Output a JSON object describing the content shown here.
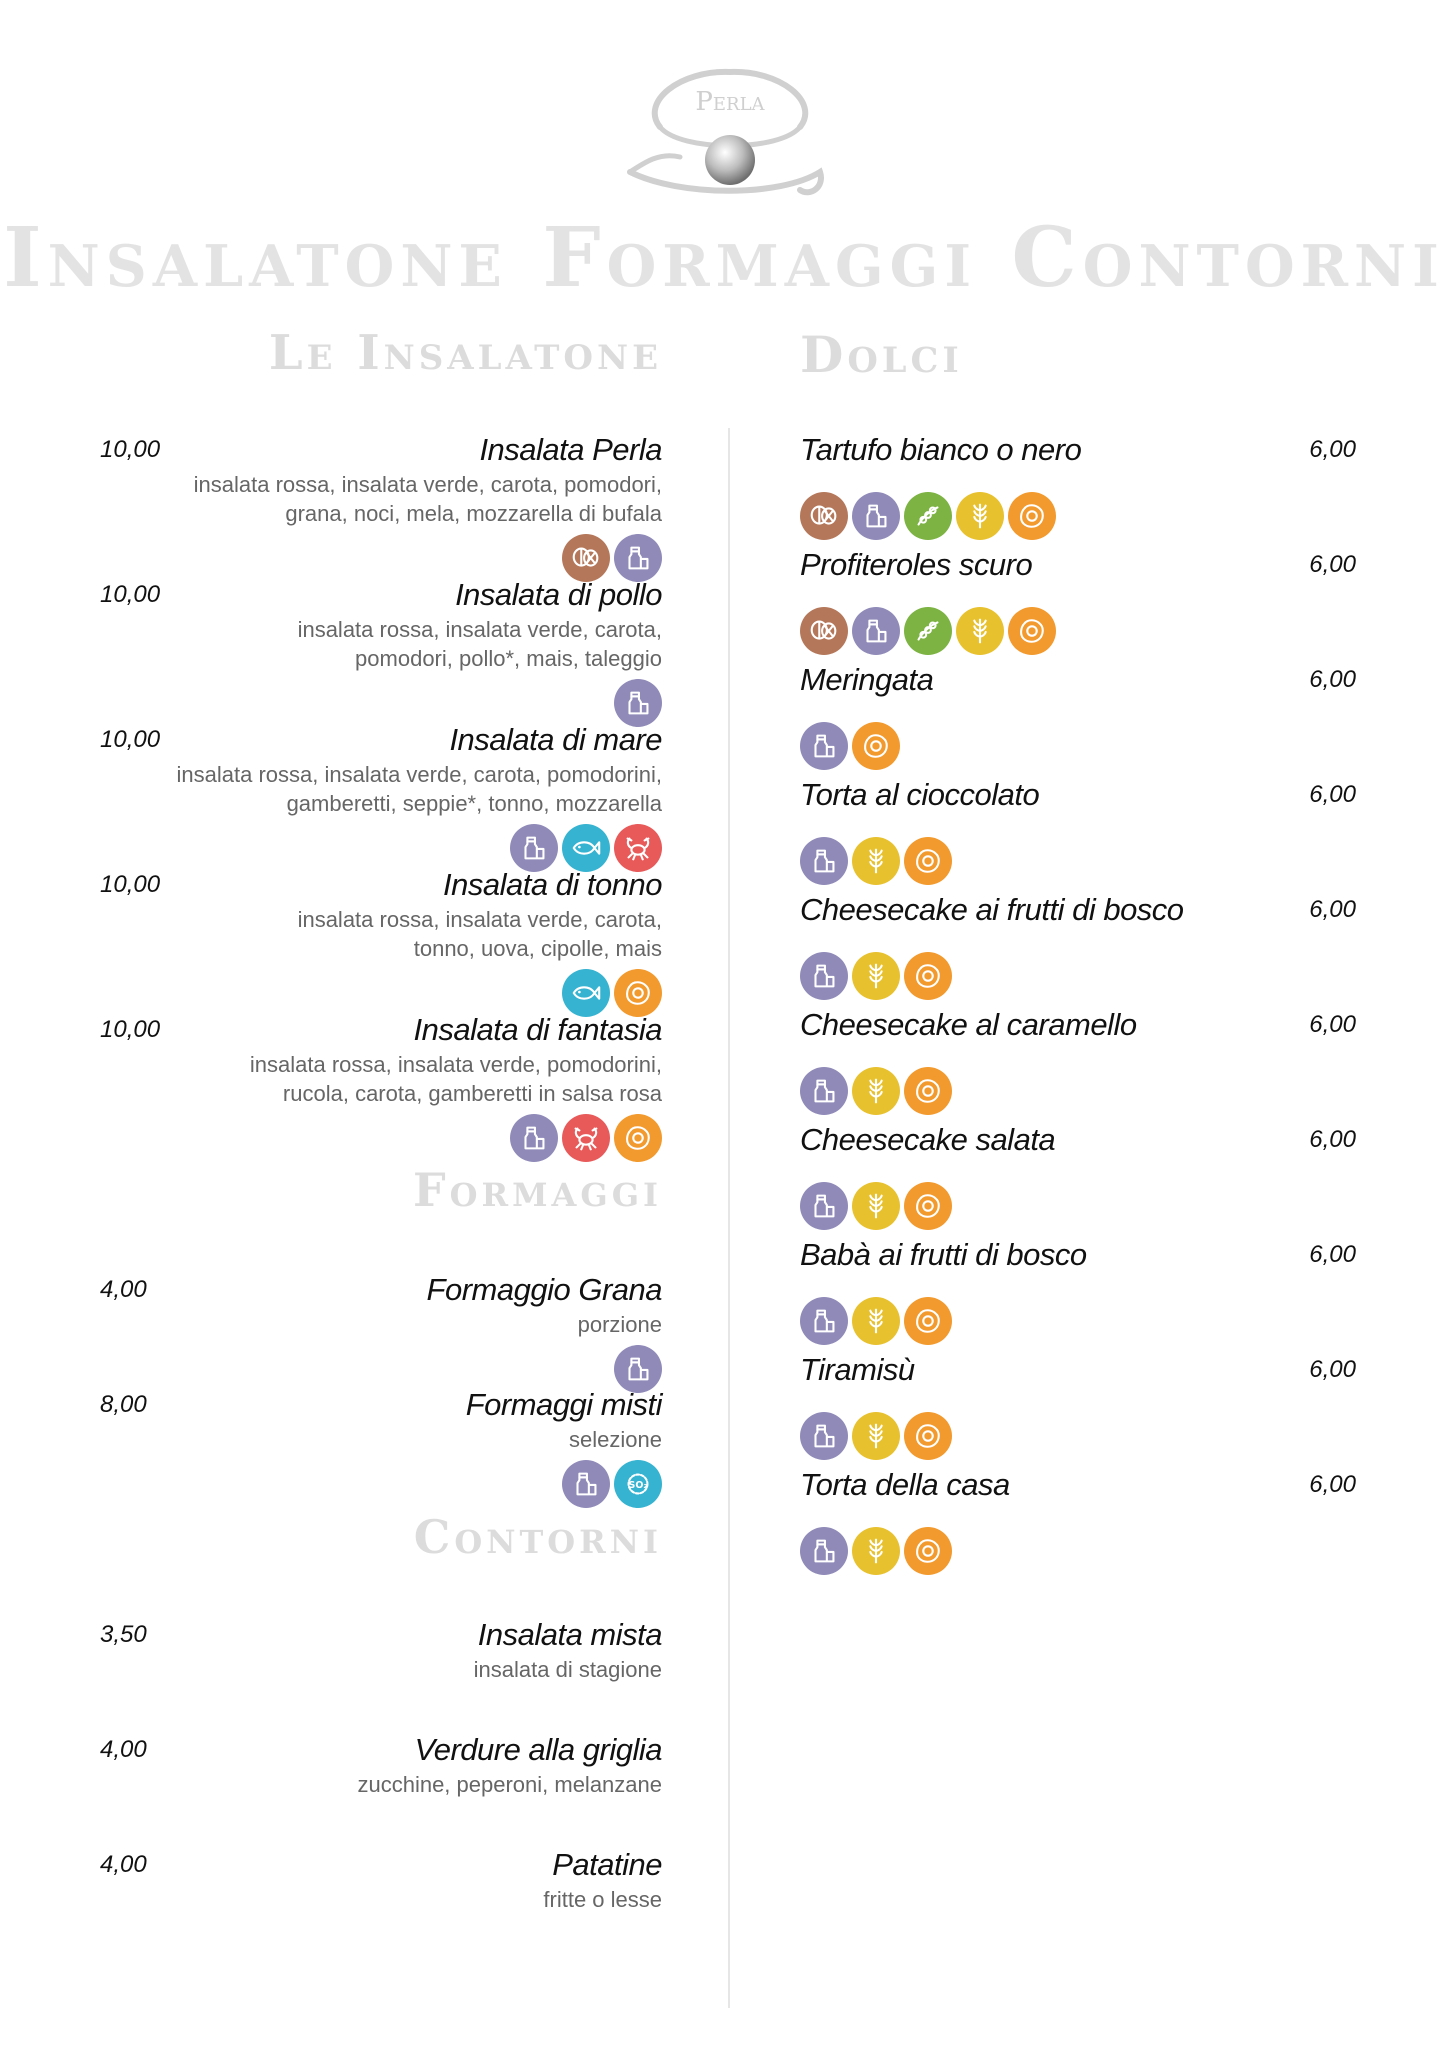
{
  "logo": {
    "text": "Perla"
  },
  "title": "Insalatone Formaggi Contorni",
  "colors": {
    "nuts": "#b5775a",
    "dairy": "#8f8ab8",
    "soy": "#7cb342",
    "gluten": "#e8c12f",
    "egg": "#f29a2e",
    "fish": "#35b3d1",
    "crustacean": "#e85a5a",
    "sulphites": "#35b3d1"
  },
  "sections": {
    "insalatone": {
      "heading": "Le Insalatone",
      "items": [
        {
          "price": "10,00",
          "name": "Insalata Perla",
          "desc1": "insalata rossa, insalata verde, carota, pomodori,",
          "desc2": "grana, noci, mela, mozzarella di bufala",
          "icons": [
            "nuts-icon",
            "dairy-icon"
          ]
        },
        {
          "price": "10,00",
          "name": "Insalata di pollo",
          "desc1": "insalata rossa, insalata verde, carota,",
          "desc2": "pomodori, pollo*, mais, taleggio",
          "icons": [
            "dairy-icon"
          ]
        },
        {
          "price": "10,00",
          "name": "Insalata di mare",
          "desc1": "insalata rossa, insalata verde, carota, pomodorini,",
          "desc2": "gamberetti, seppie*, tonno, mozzarella",
          "icons": [
            "dairy-icon",
            "fish-icon",
            "crustacean-icon"
          ]
        },
        {
          "price": "10,00",
          "name": "Insalata di tonno",
          "desc1": "insalata rossa, insalata verde, carota,",
          "desc2": "tonno, uova, cipolle, mais",
          "icons": [
            "fish-icon",
            "egg-icon"
          ]
        },
        {
          "price": "10,00",
          "name": "Insalata di fantasia",
          "desc1": "insalata rossa, insalata verde, pomodorini,",
          "desc2": "rucola, carota, gamberetti in salsa rosa",
          "icons": [
            "dairy-icon",
            "crustacean-icon",
            "egg-icon"
          ]
        }
      ]
    },
    "formaggi": {
      "heading": "Formaggi",
      "items": [
        {
          "price": "4,00",
          "name": "Formaggio Grana",
          "desc1": "porzione",
          "icons": [
            "dairy-icon"
          ]
        },
        {
          "price": "8,00",
          "name": "Formaggi misti",
          "desc1": "selezione",
          "icons": [
            "dairy-icon",
            "sulphites-icon"
          ]
        }
      ]
    },
    "contorni": {
      "heading": "Contorni",
      "items": [
        {
          "price": "3,50",
          "name": "Insalata mista",
          "desc1": "insalata di stagione"
        },
        {
          "price": "4,00",
          "name": "Verdure alla griglia",
          "desc1": "zucchine, peperoni, melanzane"
        },
        {
          "price": "4,00",
          "name": "Patatine",
          "desc1": "fritte o lesse"
        }
      ]
    },
    "dolci": {
      "heading": "Dolci",
      "items": [
        {
          "name": "Tartufo bianco o nero",
          "price": "6,00",
          "icons": [
            "nuts-icon",
            "dairy-icon",
            "soy-icon",
            "gluten-icon",
            "egg-icon"
          ]
        },
        {
          "name": "Profiteroles scuro",
          "price": "6,00",
          "icons": [
            "nuts-icon",
            "dairy-icon",
            "soy-icon",
            "gluten-icon",
            "egg-icon"
          ]
        },
        {
          "name": "Meringata",
          "price": "6,00",
          "icons": [
            "dairy-icon",
            "egg-icon"
          ]
        },
        {
          "name": "Torta al cioccolato",
          "price": "6,00",
          "icons": [
            "dairy-icon",
            "gluten-icon",
            "egg-icon"
          ]
        },
        {
          "name": "Cheesecake ai frutti di bosco",
          "price": "6,00",
          "icons": [
            "dairy-icon",
            "gluten-icon",
            "egg-icon"
          ]
        },
        {
          "name": "Cheesecake al caramello",
          "price": "6,00",
          "icons": [
            "dairy-icon",
            "gluten-icon",
            "egg-icon"
          ]
        },
        {
          "name": "Cheesecake salata",
          "price": "6,00",
          "icons": [
            "dairy-icon",
            "gluten-icon",
            "egg-icon"
          ]
        },
        {
          "name": "Babà ai frutti di bosco",
          "price": "6,00",
          "icons": [
            "dairy-icon",
            "gluten-icon",
            "egg-icon"
          ]
        },
        {
          "name": "Tiramisù",
          "price": "6,00",
          "icons": [
            "dairy-icon",
            "gluten-icon",
            "egg-icon"
          ]
        },
        {
          "name": "Torta della casa",
          "price": "6,00",
          "icons": [
            "dairy-icon",
            "gluten-icon",
            "egg-icon"
          ]
        }
      ]
    }
  }
}
